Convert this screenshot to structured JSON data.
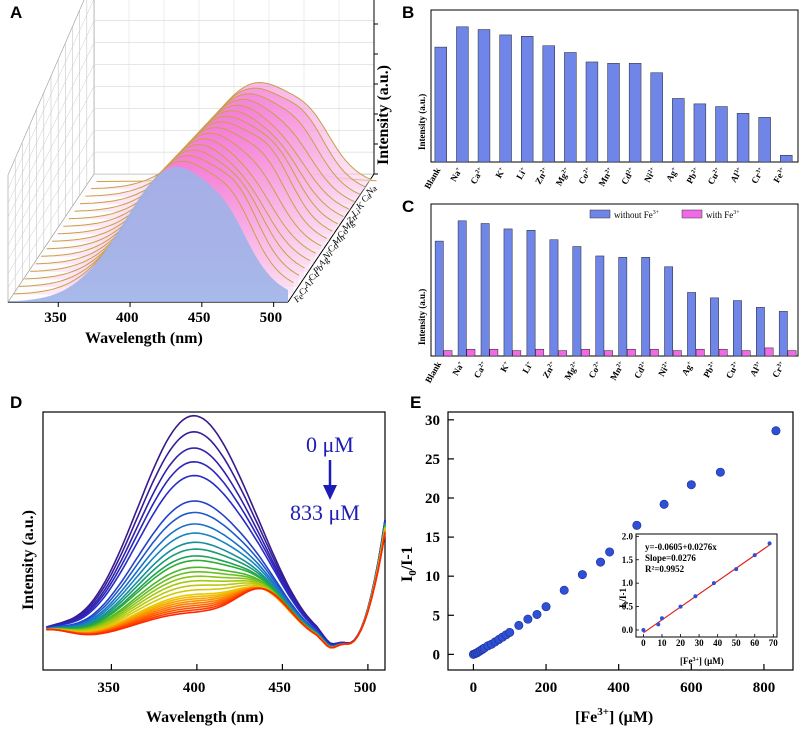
{
  "panels": {
    "A": "A",
    "B": "B",
    "C": "C",
    "D": "D",
    "E": "E"
  },
  "colors": {
    "bar_blue": "#6f86e8",
    "bar_magenta": "#f06ae6",
    "d_start": "#3a1a8a",
    "d_end": "#ff2a00",
    "fit_red": "#e02020",
    "point_blue": "#2f4fd6",
    "annot_blue": "#1d1db5"
  },
  "chart_data": [
    {
      "id": "A",
      "type": "area",
      "title": "",
      "xlabel": "Wavelength (nm)",
      "ylabel": "Intensity (a.u.)",
      "xticks": [
        "350",
        "400",
        "450",
        "500"
      ],
      "xlim": [
        315,
        510
      ],
      "series_labels": [
        "Na+",
        "Ca2+",
        "K+",
        "Li+",
        "Zn2+",
        "Mg2+",
        "Co2+",
        "Mn2+",
        "Cd2+",
        "Ni2+",
        "Ag+",
        "Pb2+",
        "Cu2+",
        "Al3+",
        "Cr3+",
        "Fe3+"
      ],
      "series_labels_shown": [
        "Na",
        "Ca",
        "K",
        "Li",
        "Zn",
        "Mg",
        "Co",
        "Mn",
        "Cd",
        "Ni",
        "Ag",
        "Pb",
        "Cu",
        "Al",
        "Cr",
        "Fe"
      ]
    },
    {
      "id": "B",
      "type": "bar",
      "ylabel": "Intensity (a.u.)",
      "categories": [
        "Blank",
        "Na+",
        "Ca2+",
        "K+",
        "Li+",
        "Zn2+",
        "Mg2+",
        "Co2+",
        "Mn2+",
        "Cd2+",
        "Ni2+",
        "Ag+",
        "Pb2+",
        "Cu2+",
        "Al3+",
        "Cr3+",
        "Fe3+"
      ],
      "category_labels": [
        "Blank",
        "Na",
        "Ca",
        "K",
        "Li",
        "Zn",
        "Mg",
        "Co",
        "Mn",
        "Cd",
        "Ni",
        "Ag",
        "Pb",
        "Cu",
        "Al",
        "Cr",
        "Fe"
      ],
      "category_sups": [
        "",
        "+",
        "2+",
        "+",
        "+",
        "2+",
        "2+",
        "2+",
        "2+",
        "2+",
        "2+",
        "+",
        "2+",
        "2+",
        "3+",
        "3+",
        "3+"
      ],
      "values": [
        0.85,
        1.0,
        0.98,
        0.94,
        0.93,
        0.86,
        0.81,
        0.74,
        0.73,
        0.73,
        0.66,
        0.47,
        0.43,
        0.41,
        0.36,
        0.33,
        0.05
      ],
      "ylim": [
        0,
        1.08
      ]
    },
    {
      "id": "C",
      "type": "bar",
      "ylabel": "Intensity (a.u.)",
      "categories": [
        "Blank",
        "Na+",
        "Ca2+",
        "K+",
        "Li+",
        "Zn2+",
        "Mg2+",
        "Co2+",
        "Mn2+",
        "Cd2+",
        "Ni2+",
        "Ag+",
        "Pb2+",
        "Cu2+",
        "Al3+",
        "Cr3+"
      ],
      "category_labels": [
        "Blank",
        "Na",
        "Ca",
        "K",
        "Li",
        "Zn",
        "Mg",
        "Co",
        "Mn",
        "Cd",
        "Ni",
        "Ag",
        "Pb",
        "Cu",
        "Al",
        "Cr"
      ],
      "category_sups": [
        "",
        "+",
        "2+",
        "+",
        "+",
        "2+",
        "2+",
        "2+",
        "2+",
        "2+",
        "2+",
        "+",
        "2+",
        "2+",
        "3+",
        "3+"
      ],
      "series": [
        {
          "name": "without Fe3+",
          "legend": "without Fe",
          "legend_sup": "3+",
          "values": [
            0.85,
            1.0,
            0.98,
            0.94,
            0.93,
            0.86,
            0.81,
            0.74,
            0.73,
            0.73,
            0.66,
            0.47,
            0.43,
            0.41,
            0.36,
            0.33
          ]
        },
        {
          "name": "with Fe3+",
          "legend": "with Fe",
          "legend_sup": "3+",
          "values": [
            0.04,
            0.05,
            0.05,
            0.04,
            0.05,
            0.04,
            0.05,
            0.04,
            0.05,
            0.05,
            0.04,
            0.05,
            0.05,
            0.04,
            0.06,
            0.04
          ]
        }
      ],
      "ylim": [
        0,
        1.08
      ]
    },
    {
      "id": "D",
      "type": "line",
      "xlabel": "Wavelength (nm)",
      "ylabel": "Intensity (a.u.)",
      "xticks": [
        "350",
        "400",
        "450",
        "500"
      ],
      "xlim": [
        310,
        510
      ],
      "annotation_start": "0 μM",
      "annotation_end": "833 μM",
      "peak_levels": [
        1.0,
        0.93,
        0.86,
        0.8,
        0.74,
        0.63,
        0.58,
        0.53,
        0.49,
        0.45,
        0.42,
        0.39,
        0.37,
        0.34,
        0.32,
        0.3,
        0.28,
        0.26,
        0.24,
        0.22,
        0.21,
        0.2,
        0.19,
        0.18,
        0.17,
        0.16,
        0.15,
        0.14
      ]
    },
    {
      "id": "E",
      "type": "scatter",
      "xlabel": "[Fe3+] (μM)",
      "xlabel_base": "[Fe",
      "xlabel_sup": "3+",
      "xlabel_tail": "] (μM)",
      "ylabel": "I0/I-1",
      "ylabel_base": "I",
      "ylabel_sub": "0",
      "ylabel_tail": "/I-1",
      "xlim": [
        -70,
        880
      ],
      "ylim": [
        -2,
        31
      ],
      "xticks": [
        0,
        200,
        400,
        600,
        800
      ],
      "yticks": [
        0,
        5,
        10,
        15,
        20,
        25,
        30
      ],
      "x": [
        0,
        5,
        10,
        15,
        20,
        25,
        30,
        40,
        50,
        60,
        70,
        80,
        90,
        100,
        125,
        150,
        175,
        200,
        250,
        300,
        350,
        375,
        450,
        525,
        600,
        680,
        833
      ],
      "y": [
        0,
        0.1,
        0.2,
        0.35,
        0.5,
        0.65,
        0.8,
        1.1,
        1.3,
        1.6,
        1.9,
        2.2,
        2.5,
        2.8,
        3.7,
        4.5,
        5.1,
        6.1,
        8.2,
        10.2,
        11.8,
        13.1,
        16.5,
        19.2,
        21.7,
        23.3,
        28.6
      ],
      "inset": {
        "xlabel": "[Fe3+] (μM)",
        "xlabel_base": "[Fe",
        "xlabel_sup": "3+",
        "xlabel_tail": "] (μM)",
        "ylabel": "I0/I-1",
        "ylabel_base": "I",
        "ylabel_sub": "0",
        "ylabel_tail": "/I-1",
        "xlim": [
          -4,
          72
        ],
        "ylim": [
          -0.15,
          2.05
        ],
        "xticks": [
          0,
          10,
          20,
          30,
          40,
          50,
          60,
          70
        ],
        "yticks": [
          "0.0",
          "0.5",
          "1.0",
          "1.5",
          "2.0"
        ],
        "x": [
          0,
          8,
          10,
          20,
          28,
          38,
          50,
          60,
          68
        ],
        "y": [
          0.0,
          0.12,
          0.25,
          0.5,
          0.72,
          1.0,
          1.3,
          1.6,
          1.85
        ],
        "fit": {
          "intercept": -0.0605,
          "slope": 0.0276
        },
        "equation": "y=-0.0605+0.0276x",
        "slope_text": "Slope=0.0276",
        "r2_text": "R²=0.9952"
      }
    }
  ]
}
